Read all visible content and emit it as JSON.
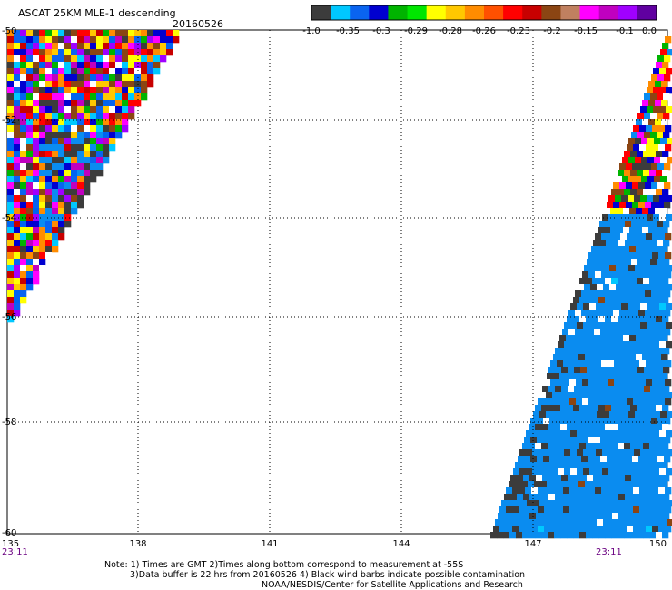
{
  "title": "ASCAT 25KM MLE-1 descending",
  "date": "20160526",
  "colorbar": {
    "colors": [
      "#3c3c3c",
      "#00c8ff",
      "#0a64f0",
      "#0000d0",
      "#00b400",
      "#00e600",
      "#ffff00",
      "#ffc800",
      "#ff8c00",
      "#ff5000",
      "#ff0000",
      "#c80000",
      "#8b4513",
      "#c08060",
      "#ff00ff",
      "#c000c0",
      "#a000ff",
      "#6000a0"
    ],
    "tick_labels": [
      "-1.0",
      "-0.35",
      "-0.3",
      "-0.29",
      "-0.28",
      "-0.26",
      "-0.23",
      "-0.2",
      "-0.15",
      "-0.1",
      "0.0"
    ]
  },
  "axes": {
    "x_ticks": [
      "135",
      "138",
      "141",
      "144",
      "147",
      "150"
    ],
    "y_ticks": [
      "-50",
      "-52",
      "-54",
      "-56",
      "-58",
      "-60"
    ],
    "x_range": [
      135,
      150
    ],
    "y_range": [
      -50,
      -60
    ],
    "grid": "dotted"
  },
  "times": [
    "23:11",
    "23:11"
  ],
  "notes": [
    "Note: 1) Times are GMT 2)Times along bottom correspond to measurement at -55S",
    "3)Data buffer is 22 hrs from 20160526 4) Black wind barbs indicate possible contamination",
    "NOAA/NESDIS/Center for Satellite Applications and Research"
  ],
  "swaths": {
    "west": {
      "description": "multi-coloured swath edge, upper left",
      "lon_range": [
        135,
        138.9
      ],
      "lat_range": [
        -50,
        -56
      ]
    },
    "east": {
      "description": "mostly blue swath, lower right",
      "lon_range": [
        146.8,
        150
      ],
      "lat_range": [
        -50.5,
        -60
      ]
    }
  }
}
